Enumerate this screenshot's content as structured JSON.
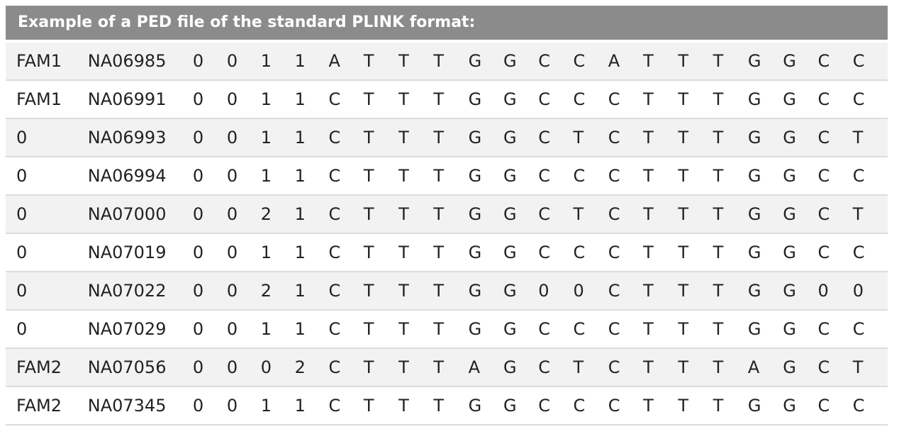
{
  "header": {
    "title": "Example of a PED file of the standard PLINK format:"
  },
  "rows": [
    {
      "family_id": "FAM1",
      "individual_id": "NA06985",
      "paternal_id": "0",
      "maternal_id": "0",
      "sex": "1",
      "phenotype": "1",
      "genotypes": [
        "A",
        "T",
        "T",
        "T",
        "G",
        "G",
        "C",
        "C",
        "A",
        "T",
        "T",
        "T",
        "G",
        "G",
        "C",
        "C"
      ]
    },
    {
      "family_id": "FAM1",
      "individual_id": "NA06991",
      "paternal_id": "0",
      "maternal_id": "0",
      "sex": "1",
      "phenotype": "1",
      "genotypes": [
        "C",
        "T",
        "T",
        "T",
        "G",
        "G",
        "C",
        "C",
        "C",
        "T",
        "T",
        "T",
        "G",
        "G",
        "C",
        "C"
      ]
    },
    {
      "family_id": "0",
      "individual_id": "NA06993",
      "paternal_id": "0",
      "maternal_id": "0",
      "sex": "1",
      "phenotype": "1",
      "genotypes": [
        "C",
        "T",
        "T",
        "T",
        "G",
        "G",
        "C",
        "T",
        "C",
        "T",
        "T",
        "T",
        "G",
        "G",
        "C",
        "T"
      ]
    },
    {
      "family_id": "0",
      "individual_id": "NA06994",
      "paternal_id": "0",
      "maternal_id": "0",
      "sex": "1",
      "phenotype": "1",
      "genotypes": [
        "C",
        "T",
        "T",
        "T",
        "G",
        "G",
        "C",
        "C",
        "C",
        "T",
        "T",
        "T",
        "G",
        "G",
        "C",
        "C"
      ]
    },
    {
      "family_id": "0",
      "individual_id": "NA07000",
      "paternal_id": "0",
      "maternal_id": "0",
      "sex": "2",
      "phenotype": "1",
      "genotypes": [
        "C",
        "T",
        "T",
        "T",
        "G",
        "G",
        "C",
        "T",
        "C",
        "T",
        "T",
        "T",
        "G",
        "G",
        "C",
        "T"
      ]
    },
    {
      "family_id": "0",
      "individual_id": "NA07019",
      "paternal_id": "0",
      "maternal_id": "0",
      "sex": "1",
      "phenotype": "1",
      "genotypes": [
        "C",
        "T",
        "T",
        "T",
        "G",
        "G",
        "C",
        "C",
        "C",
        "T",
        "T",
        "T",
        "G",
        "G",
        "C",
        "C"
      ]
    },
    {
      "family_id": "0",
      "individual_id": "NA07022",
      "paternal_id": "0",
      "maternal_id": "0",
      "sex": "2",
      "phenotype": "1",
      "genotypes": [
        "C",
        "T",
        "T",
        "T",
        "G",
        "G",
        "0",
        "0",
        "C",
        "T",
        "T",
        "T",
        "G",
        "G",
        "0",
        "0"
      ]
    },
    {
      "family_id": "0",
      "individual_id": "NA07029",
      "paternal_id": "0",
      "maternal_id": "0",
      "sex": "1",
      "phenotype": "1",
      "genotypes": [
        "C",
        "T",
        "T",
        "T",
        "G",
        "G",
        "C",
        "C",
        "C",
        "T",
        "T",
        "T",
        "G",
        "G",
        "C",
        "C"
      ]
    },
    {
      "family_id": "FAM2",
      "individual_id": "NA07056",
      "paternal_id": "0",
      "maternal_id": "0",
      "sex": "0",
      "phenotype": "2",
      "genotypes": [
        "C",
        "T",
        "T",
        "T",
        "A",
        "G",
        "C",
        "T",
        "C",
        "T",
        "T",
        "T",
        "A",
        "G",
        "C",
        "T"
      ]
    },
    {
      "family_id": "FAM2",
      "individual_id": "NA07345",
      "paternal_id": "0",
      "maternal_id": "0",
      "sex": "1",
      "phenotype": "1",
      "genotypes": [
        "C",
        "T",
        "T",
        "T",
        "G",
        "G",
        "C",
        "C",
        "C",
        "T",
        "T",
        "T",
        "G",
        "G",
        "C",
        "C"
      ]
    }
  ],
  "colors": {
    "header_bg": "#8b8b8b",
    "header_text": "#ffffff",
    "row_odd_bg": "#f2f2f2",
    "row_even_bg": "#ffffff",
    "row_border": "#dcdcdc",
    "text": "#222222"
  }
}
